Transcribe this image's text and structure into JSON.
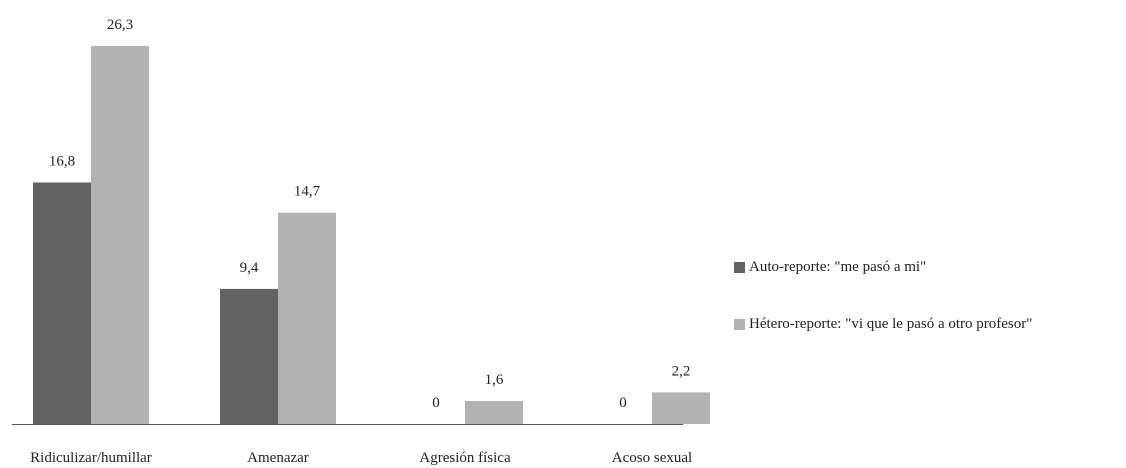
{
  "chart_data": {
    "type": "bar",
    "title": "",
    "xlabel": "",
    "ylabel": "",
    "categories": [
      "Ridiculizar/humillar",
      "Amenazar",
      "Agresión física",
      "Acoso sexual"
    ],
    "series": [
      {
        "name": "Auto-reporte: \"me pasó a mi\"",
        "values": [
          16.8,
          9.4,
          0,
          0
        ],
        "labels": [
          "16,8",
          "9,4",
          "0",
          "0"
        ],
        "color": "#636363"
      },
      {
        "name": "Hétero-reporte: \"vi que le pasó a otro profesor\"",
        "values": [
          26.3,
          14.7,
          1.6,
          2.2
        ],
        "labels": [
          "26,3",
          "14,7",
          "1,6",
          "2,2"
        ],
        "color": "#b3b3b3"
      }
    ],
    "ylim": [
      0,
      28
    ],
    "grid": false,
    "yaxis_visible": false,
    "legend_position": "right"
  },
  "colors": {
    "axis": "#555555"
  }
}
